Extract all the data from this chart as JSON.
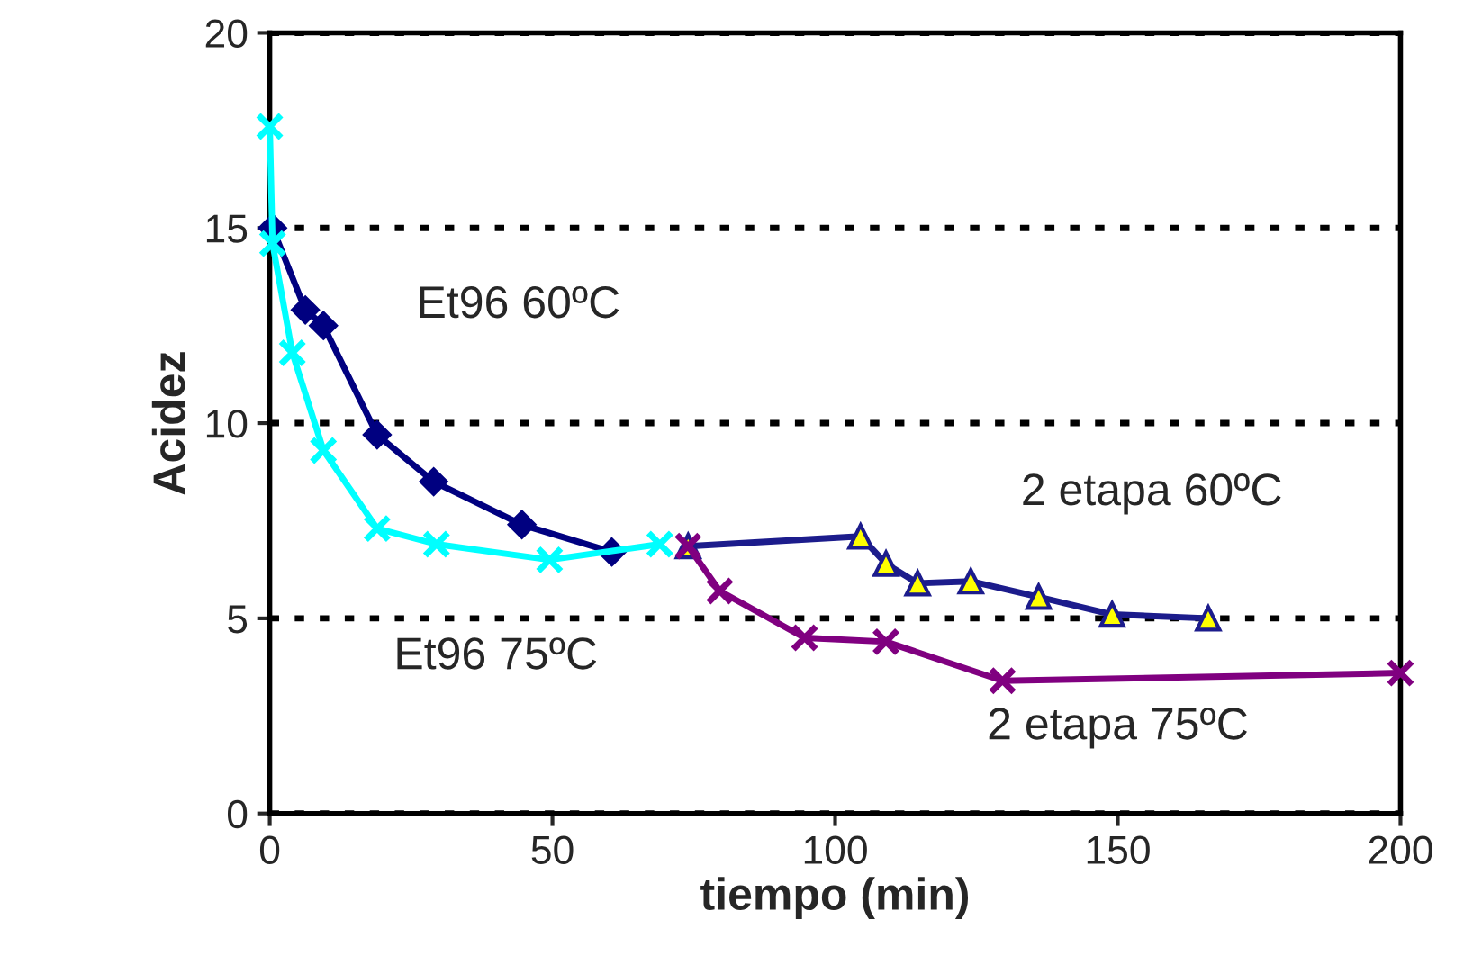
{
  "chart_data": {
    "type": "line",
    "xlabel": "tiempo (min)",
    "ylabel": "Acidez",
    "xlim": [
      0,
      200
    ],
    "xticks": [
      0,
      50,
      100,
      150,
      200
    ],
    "ylim": [
      0,
      20
    ],
    "yticks": [
      0,
      5,
      10,
      15,
      20
    ],
    "grid": "y",
    "legend": false,
    "line_style": "solid",
    "series": [
      {
        "name": "Et96 60ºC",
        "color": "#000080",
        "marker": "diamond",
        "x": [
          0.5,
          6.3,
          9.5,
          19,
          29,
          44.6,
          60.5
        ],
        "values": [
          15.0,
          12.9,
          12.5,
          9.7,
          8.5,
          7.4,
          6.7
        ]
      },
      {
        "name": "Et96 75ºC",
        "color": "#00ffff",
        "marker": "cross",
        "x": [
          0,
          0.5,
          4,
          9.5,
          19,
          29.5,
          49.5,
          69
        ],
        "values": [
          17.6,
          14.6,
          11.8,
          9.3,
          7.3,
          6.9,
          6.5,
          6.9
        ]
      },
      {
        "name": "2 etapa 60ºC",
        "color": "#1c1c8c",
        "marker": "triangle",
        "x": [
          74,
          104.5,
          109,
          114.6,
          124,
          136,
          149,
          166
        ],
        "values": [
          6.85,
          7.1,
          6.4,
          5.9,
          5.95,
          5.55,
          5.1,
          5.0
        ]
      },
      {
        "name": "2 etapa 75ºC",
        "color": "#800080",
        "marker": "cross",
        "x": [
          74,
          79.6,
          94.6,
          109,
          129.6,
          200
        ],
        "values": [
          6.85,
          5.7,
          4.5,
          4.4,
          3.4,
          3.6
        ]
      }
    ]
  }
}
